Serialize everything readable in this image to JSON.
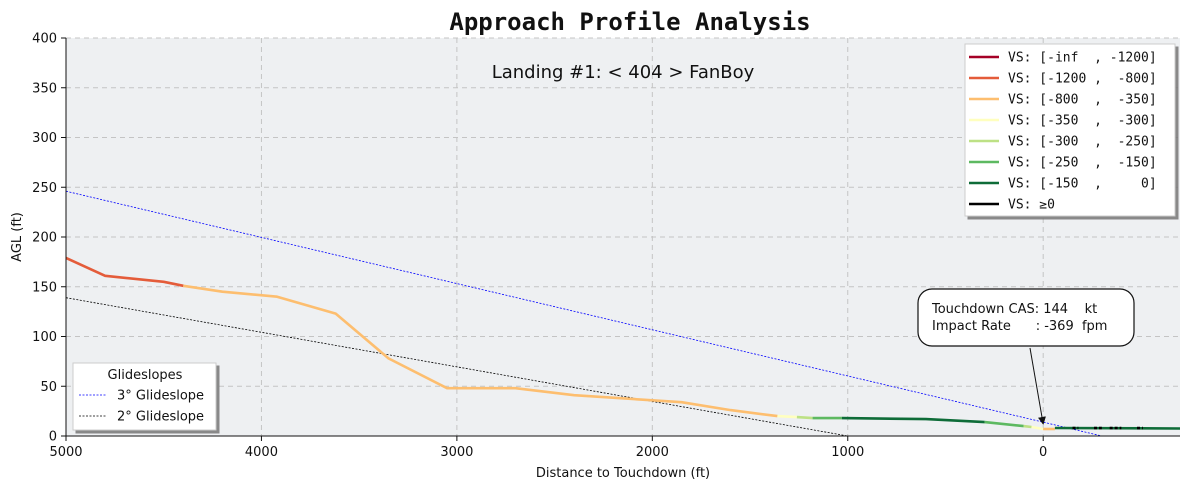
{
  "chart_data": {
    "type": "line",
    "title": "Approach Profile Analysis",
    "subtitle": "Landing #1: < 404 > FanBoy",
    "xlabel": "Distance to Touchdown (ft)",
    "ylabel": "AGL (ft)",
    "xlim": [
      5000,
      -700
    ],
    "ylim": [
      0,
      400
    ],
    "xticks": [
      5000,
      4000,
      3000,
      2000,
      1000,
      0
    ],
    "yticks": [
      0,
      50,
      100,
      150,
      200,
      250,
      300,
      350,
      400
    ],
    "grid": true,
    "vs_legend_placement": "top-right",
    "vs_legend": [
      {
        "label": "VS: [-inf  , -1200]",
        "color": "#a50026"
      },
      {
        "label": "VS: [-1200 ,  -800]",
        "color": "#e45c3a"
      },
      {
        "label": "VS: [-800  ,  -350]",
        "color": "#fdbe6f"
      },
      {
        "label": "VS: [-350  ,  -300]",
        "color": "#ffffbf"
      },
      {
        "label": "VS: [-300  ,  -250]",
        "color": "#bde185"
      },
      {
        "label": "VS: [-250  ,  -150]",
        "color": "#5db961"
      },
      {
        "label": "VS: [-150  ,     0]",
        "color": "#0e6c38"
      },
      {
        "label": "VS: ≥0",
        "color": "#000000"
      }
    ],
    "glideslope_legend": {
      "title": "Glideslopes",
      "placement": "lower-left",
      "entries": [
        {
          "label": "3° Glideslope",
          "color": "#0000ff"
        },
        {
          "label": "2° Glideslope",
          "color": "#000000"
        }
      ]
    },
    "glideslopes": [
      {
        "name": "3° Glideslope",
        "color": "#0000ff",
        "x": [
          5000,
          -300
        ],
        "y": [
          246,
          0
        ]
      },
      {
        "name": "2° Glideslope",
        "color": "#000000",
        "x": [
          5000,
          1000
        ],
        "y": [
          139,
          0
        ]
      }
    ],
    "segments": [
      {
        "color": "#e45c3a",
        "x": [
          5000,
          4800,
          4500,
          4400
        ],
        "y": [
          179,
          161,
          155,
          151
        ]
      },
      {
        "color": "#fdbe6f",
        "x": [
          4400,
          4200,
          3920,
          3620,
          3350,
          3050,
          2700,
          2400,
          1850,
          1600,
          1360
        ],
        "y": [
          151,
          145,
          140,
          123,
          78,
          48,
          48,
          41,
          34,
          26,
          20
        ]
      },
      {
        "color": "#ffffbf",
        "x": [
          1360,
          1260
        ],
        "y": [
          20,
          19
        ]
      },
      {
        "color": "#bde185",
        "x": [
          1260,
          1180
        ],
        "y": [
          19,
          18
        ]
      },
      {
        "color": "#5db961",
        "x": [
          1180,
          1030
        ],
        "y": [
          18,
          18
        ]
      },
      {
        "color": "#0e6c38",
        "x": [
          1030,
          600,
          300
        ],
        "y": [
          18,
          17,
          14
        ]
      },
      {
        "color": "#5db961",
        "x": [
          300,
          100
        ],
        "y": [
          14,
          10
        ]
      },
      {
        "color": "#bde185",
        "x": [
          100,
          60
        ],
        "y": [
          10,
          9
        ]
      },
      {
        "color": "#ffffbf",
        "x": [
          60,
          0
        ],
        "y": [
          9,
          7
        ]
      },
      {
        "color": "#fdbe6f",
        "x": [
          0,
          -60
        ],
        "y": [
          7,
          7
        ]
      },
      {
        "color": "#0e6c38",
        "x": [
          -60,
          -700
        ],
        "y": [
          8,
          7.5
        ]
      }
    ],
    "positive_vs_marks": [
      {
        "color": "#000000",
        "x": [
          -150,
          -180
        ]
      },
      {
        "color": "#000000",
        "x": [
          -260,
          -300
        ]
      },
      {
        "color": "#000000",
        "x": [
          -340,
          -400
        ]
      },
      {
        "color": "#000000",
        "x": [
          -480,
          -510
        ]
      }
    ],
    "annotation": {
      "lines": [
        "Touchdown CAS: 144    kt",
        "Impact Rate      : -369  fpm"
      ],
      "target_x": 0,
      "target_y": 12
    }
  }
}
